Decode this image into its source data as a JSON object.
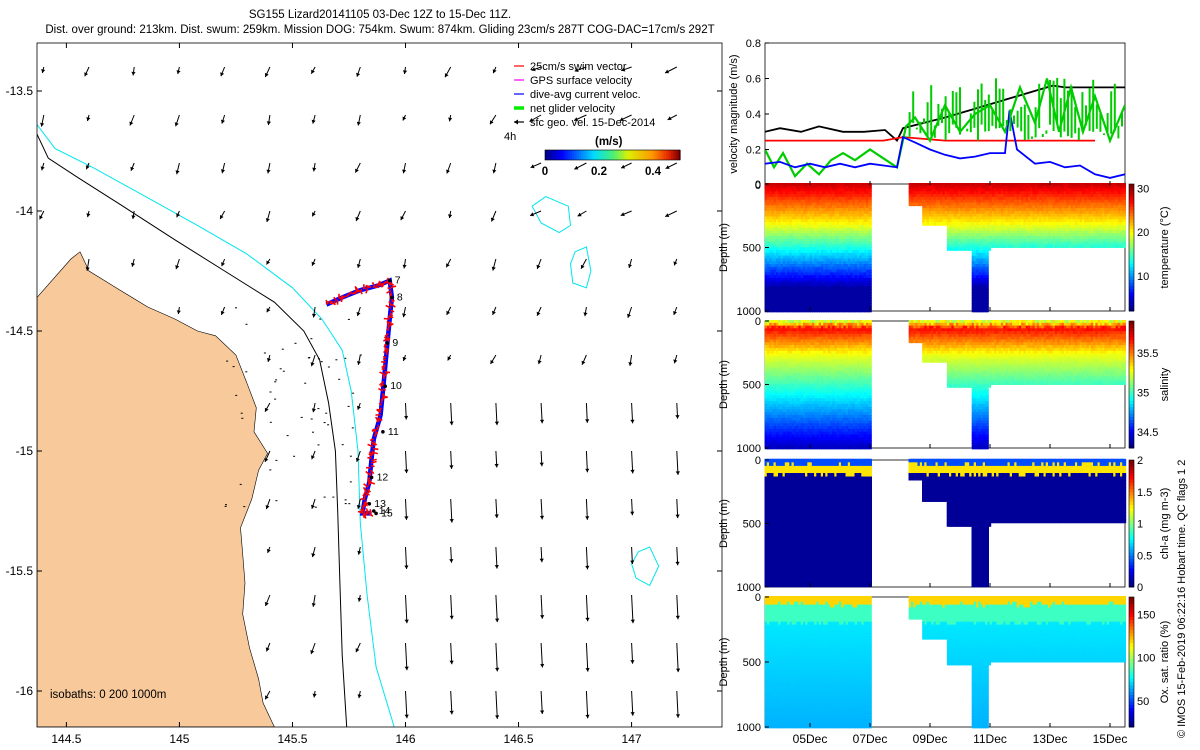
{
  "header": {
    "line1": "SG155 Lizard20141105 03-Dec 12Z to 15-Dec 11Z.",
    "line2": "Dist. over ground: 213km. Dist. swum: 259km. Mission DOG: 754km. Swum: 874km. Gliding 23cm/s 287T COG-DAC=17cm/s 292T"
  },
  "copyright": "© IMOS 15-Feb-2019 06:22:16 Hobart time. QC flags 1  2",
  "colors": {
    "land": "#f8c99a",
    "isobath_200": "#000000",
    "isobath_1000": "#00e5ee",
    "swim_vector": "#ff0000",
    "gps_velocity": "#ff00ff",
    "dive_current": "#0000ff",
    "net_glider": "#00ee00",
    "sfc_geo": "#000000"
  },
  "chart_data": [
    {
      "type": "scatter",
      "id": "map",
      "xlim": [
        144.37,
        147.4
      ],
      "ylim": [
        -16.15,
        -13.3
      ],
      "xticks": [
        "144.5",
        "145",
        "145.5",
        "146",
        "146.5",
        "147"
      ],
      "yticks": [
        "-13.5",
        "-14",
        "-14.5",
        "-15",
        "-15.5",
        "-16"
      ],
      "legend": {
        "placement": "top-right",
        "entries": [
          "25cm/s swim vector",
          "GPS surface velocity",
          "dive-avg current veloc.",
          "net glider velocity",
          "sfc geo. vel. 15-Dec-2014"
        ]
      },
      "colorbar": {
        "title": "(m/s)",
        "tick_labels": [
          "0",
          "0.2",
          "0.4"
        ],
        "range": [
          0,
          0.5
        ],
        "side_label": "4h"
      },
      "isobath_label": "isobaths: 0   200  1000m",
      "track_day_labels": [
        "7",
        "8",
        "9",
        "10",
        "11",
        "12",
        "13",
        "14",
        "15"
      ],
      "track": [
        [
          145.65,
          -14.39
        ],
        [
          145.72,
          -14.36
        ],
        [
          145.8,
          -14.33
        ],
        [
          145.88,
          -14.31
        ],
        [
          145.93,
          -14.29
        ],
        [
          145.94,
          -14.36
        ],
        [
          145.93,
          -14.45
        ],
        [
          145.92,
          -14.55
        ],
        [
          145.91,
          -14.65
        ],
        [
          145.9,
          -14.75
        ],
        [
          145.89,
          -14.85
        ],
        [
          145.86,
          -14.95
        ],
        [
          145.85,
          -15.03
        ],
        [
          145.84,
          -15.13
        ],
        [
          145.82,
          -15.2
        ],
        [
          145.81,
          -15.26
        ],
        [
          145.85,
          -15.26
        ]
      ],
      "day_points": [
        [
          145.93,
          -14.29
        ],
        [
          145.94,
          -14.36
        ],
        [
          145.92,
          -14.55
        ],
        [
          145.91,
          -14.73
        ],
        [
          145.9,
          -14.92
        ],
        [
          145.85,
          -15.11
        ],
        [
          145.84,
          -15.22
        ],
        [
          145.86,
          -15.25
        ],
        [
          145.87,
          -15.26
        ]
      ]
    },
    {
      "type": "line",
      "id": "velocity",
      "ylabel": "velocity magnitude (m/s)",
      "ylim": [
        0,
        0.8
      ],
      "yticks": [
        "0",
        "0.2",
        "0.4",
        "0.6",
        "0.8"
      ],
      "series": [
        {
          "color": "#000000",
          "values": [
            [
              0,
              0.3
            ],
            [
              0.5,
              0.32
            ],
            [
              1.2,
              0.3
            ],
            [
              1.8,
              0.33
            ],
            [
              2.6,
              0.3
            ],
            [
              3.3,
              0.3
            ],
            [
              4.0,
              0.31
            ],
            [
              4.4,
              0.25
            ],
            [
              4.6,
              0.32
            ],
            [
              5.3,
              0.35
            ],
            [
              6.0,
              0.38
            ],
            [
              7.0,
              0.43
            ],
            [
              8.0,
              0.48
            ],
            [
              9.0,
              0.53
            ],
            [
              9.6,
              0.56
            ],
            [
              10.0,
              0.55
            ],
            [
              12.0,
              0.55
            ]
          ]
        },
        {
          "color": "#ff0000",
          "values": [
            [
              0,
              0.25
            ],
            [
              3.95,
              0.25
            ],
            [
              4.6,
              0.27
            ],
            [
              6.0,
              0.25
            ],
            [
              11.0,
              0.25
            ]
          ]
        },
        {
          "color": "#00cc00",
          "values": [
            [
              0,
              0.2
            ],
            [
              0.3,
              0.1
            ],
            [
              0.6,
              0.18
            ],
            [
              1.0,
              0.05
            ],
            [
              1.4,
              0.12
            ],
            [
              1.8,
              0.06
            ],
            [
              2.2,
              0.14
            ],
            [
              2.6,
              0.18
            ],
            [
              3.0,
              0.14
            ],
            [
              3.5,
              0.2
            ],
            [
              3.95,
              0.15
            ],
            [
              4.4,
              0.1
            ],
            [
              4.7,
              0.33
            ],
            [
              5.0,
              0.38
            ],
            [
              5.5,
              0.25
            ],
            [
              6.0,
              0.45
            ],
            [
              6.5,
              0.3
            ],
            [
              7.0,
              0.4
            ],
            [
              7.5,
              0.45
            ],
            [
              8.0,
              0.3
            ],
            [
              8.5,
              0.55
            ],
            [
              9.0,
              0.35
            ],
            [
              9.4,
              0.6
            ],
            [
              9.8,
              0.3
            ],
            [
              10.2,
              0.55
            ],
            [
              10.6,
              0.3
            ],
            [
              11.0,
              0.5
            ],
            [
              11.5,
              0.25
            ],
            [
              12.0,
              0.45
            ]
          ]
        },
        {
          "color": "#0000ff",
          "values": [
            [
              0,
              0.12
            ],
            [
              0.5,
              0.13
            ],
            [
              1.0,
              0.1
            ],
            [
              1.5,
              0.12
            ],
            [
              2.0,
              0.1
            ],
            [
              2.5,
              0.12
            ],
            [
              3.0,
              0.1
            ],
            [
              3.5,
              0.12
            ],
            [
              3.95,
              0.11
            ],
            [
              4.4,
              0.1
            ],
            [
              4.6,
              0.27
            ],
            [
              5.0,
              0.24
            ],
            [
              5.5,
              0.2
            ],
            [
              6.0,
              0.17
            ],
            [
              6.5,
              0.15
            ],
            [
              7.0,
              0.16
            ],
            [
              7.5,
              0.18
            ],
            [
              8.0,
              0.18
            ],
            [
              8.15,
              0.42
            ],
            [
              8.4,
              0.2
            ],
            [
              9.0,
              0.12
            ],
            [
              9.5,
              0.13
            ],
            [
              10.0,
              0.1
            ],
            [
              10.5,
              0.11
            ],
            [
              11.0,
              0.06
            ],
            [
              11.5,
              0.04
            ],
            [
              12.0,
              0.06
            ]
          ]
        }
      ]
    },
    {
      "type": "heatmap",
      "id": "temperature",
      "ylabel": "Depth (m)",
      "colorbar_label": "temperature (°C)",
      "ylim": [
        1000,
        0
      ],
      "yticks": [
        "0",
        "500",
        "1000"
      ],
      "cbar_range": [
        2,
        31
      ],
      "cbar_ticks": [
        "10",
        "20",
        "30"
      ]
    },
    {
      "type": "heatmap",
      "id": "salinity",
      "ylabel": "Depth (m)",
      "colorbar_label": "salinity",
      "ylim": [
        1000,
        0
      ],
      "yticks": [
        "0",
        "500",
        "1000"
      ],
      "cbar_range": [
        34.3,
        35.9
      ],
      "cbar_ticks": [
        "34.5",
        "35",
        "35.5"
      ]
    },
    {
      "type": "heatmap",
      "id": "chla",
      "ylabel": "Depth (m)",
      "colorbar_label": "chl-a (mg m-3)",
      "ylim": [
        1000,
        0
      ],
      "yticks": [
        "0",
        "500",
        "1000"
      ],
      "cbar_range": [
        0,
        2
      ],
      "cbar_ticks": [
        "0",
        "0.5",
        "1",
        "1.5",
        "2"
      ]
    },
    {
      "type": "heatmap",
      "id": "oxygen",
      "ylabel": "Depth (m)",
      "colorbar_label": "Ox. sat. ratio (%)",
      "ylim": [
        1000,
        0
      ],
      "yticks": [
        "0",
        "500",
        "1000"
      ],
      "cbar_range": [
        20,
        170
      ],
      "cbar_ticks": [
        "50",
        "100",
        "150"
      ],
      "xticks": [
        "05Dec",
        "07Dec",
        "09Dec",
        "11Dec",
        "13Dec",
        "15Dec"
      ]
    }
  ]
}
